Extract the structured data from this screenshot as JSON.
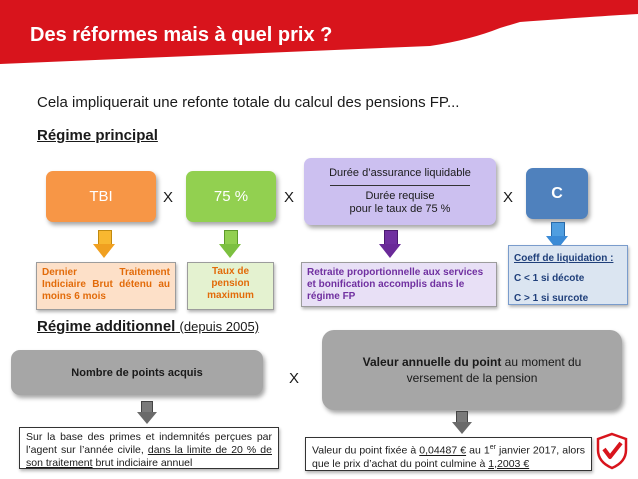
{
  "header": {
    "title": "Des réformes mais à quel prix ?",
    "band_color": "#d8141c"
  },
  "subtitle": "Cela impliquerait une refonte totale du calcul des pensions FP...",
  "principal": {
    "heading": "Régime principal",
    "tbi_label": "TBI",
    "rate_label": "75 %",
    "duration_top": "Durée d’assurance liquidable",
    "duration_bottom_1": "Durée requise",
    "duration_bottom_2": "pour le taux de 75 %",
    "coef_label": "C",
    "times": "X",
    "desc_tbi": "Dernier Traitement Indiciaire Brut détenu au moins 6 mois",
    "desc_rate_1": "Taux de",
    "desc_rate_2": "pension",
    "desc_rate_3": "maximum",
    "desc_duration": "Retraite proportionnelle aux services et bonification accomplis dans le régime FP",
    "coef_title": "Coeff de liquidation :",
    "coef_line_1": "C < 1 si décote",
    "coef_line_2": "C > 1 si surcote",
    "colors": {
      "orange": "#f79646",
      "green": "#92d050",
      "lavender": "#ccc0f0",
      "blue": "#4f81bd",
      "purple": "#7030a0"
    }
  },
  "additionnel": {
    "heading": "Régime additionnel",
    "heading_note": "(depuis 2005)",
    "points_label": "Nombre de points acquis",
    "value_bold": "Valeur annuelle du point",
    "value_rest": " au moment du versement de la pension",
    "times": "X",
    "note_left_1": "Sur la base des primes et indemnités perçues par l’agent sur l’année civile, ",
    "note_left_underlined": "dans la limite de 20 % de son traitement",
    "note_left_2": " brut indiciaire annuel",
    "note_right_1": "Valeur du point fixée à ",
    "note_right_value_1": "0,04487 €",
    "note_right_2": " au 1",
    "note_right_sup": "er",
    "note_right_3": " janvier 2017, alors que le prix d’achat du point culmine à ",
    "note_right_value_2": "1,2003 €"
  },
  "logo": {
    "icon": "shield-checkmark-logo-icon",
    "color": "#d8141c"
  }
}
